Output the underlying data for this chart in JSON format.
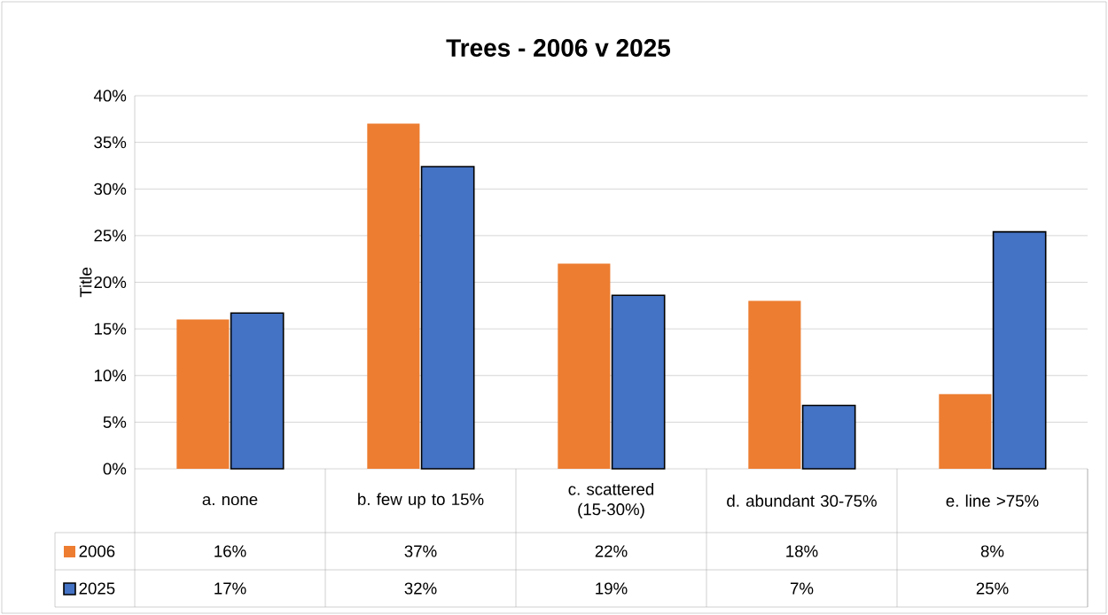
{
  "chart_data": {
    "type": "bar",
    "title": "Trees - 2006 v 2025",
    "ylabel": "Title",
    "categories": [
      "a. none",
      "b. few up to 15%",
      "c. scattered (15-30%)",
      "d. abundant 30-75%",
      "e. line >75%"
    ],
    "series": [
      {
        "name": "2006",
        "color": "#ed7d31",
        "values": [
          16,
          37,
          22,
          18,
          8
        ],
        "value_labels": [
          "16%",
          "37%",
          "22%",
          "18%",
          "8%"
        ]
      },
      {
        "name": "2025",
        "color": "#4472c4",
        "values": [
          16.7,
          32.4,
          18.6,
          6.8,
          25.4
        ],
        "value_labels": [
          "17%",
          "32%",
          "19%",
          "7%",
          "25%"
        ]
      }
    ],
    "ylim": [
      0,
      40
    ],
    "yticks": [
      {
        "value": 0,
        "label": "0%"
      },
      {
        "value": 5,
        "label": "5%"
      },
      {
        "value": 10,
        "label": "10%"
      },
      {
        "value": 15,
        "label": "15%"
      },
      {
        "value": 20,
        "label": "20%"
      },
      {
        "value": 25,
        "label": "25%"
      },
      {
        "value": 30,
        "label": "30%"
      },
      {
        "value": 35,
        "label": "35%"
      },
      {
        "value": 40,
        "label": "40%"
      }
    ],
    "grid": "y",
    "legend": "bottom"
  }
}
